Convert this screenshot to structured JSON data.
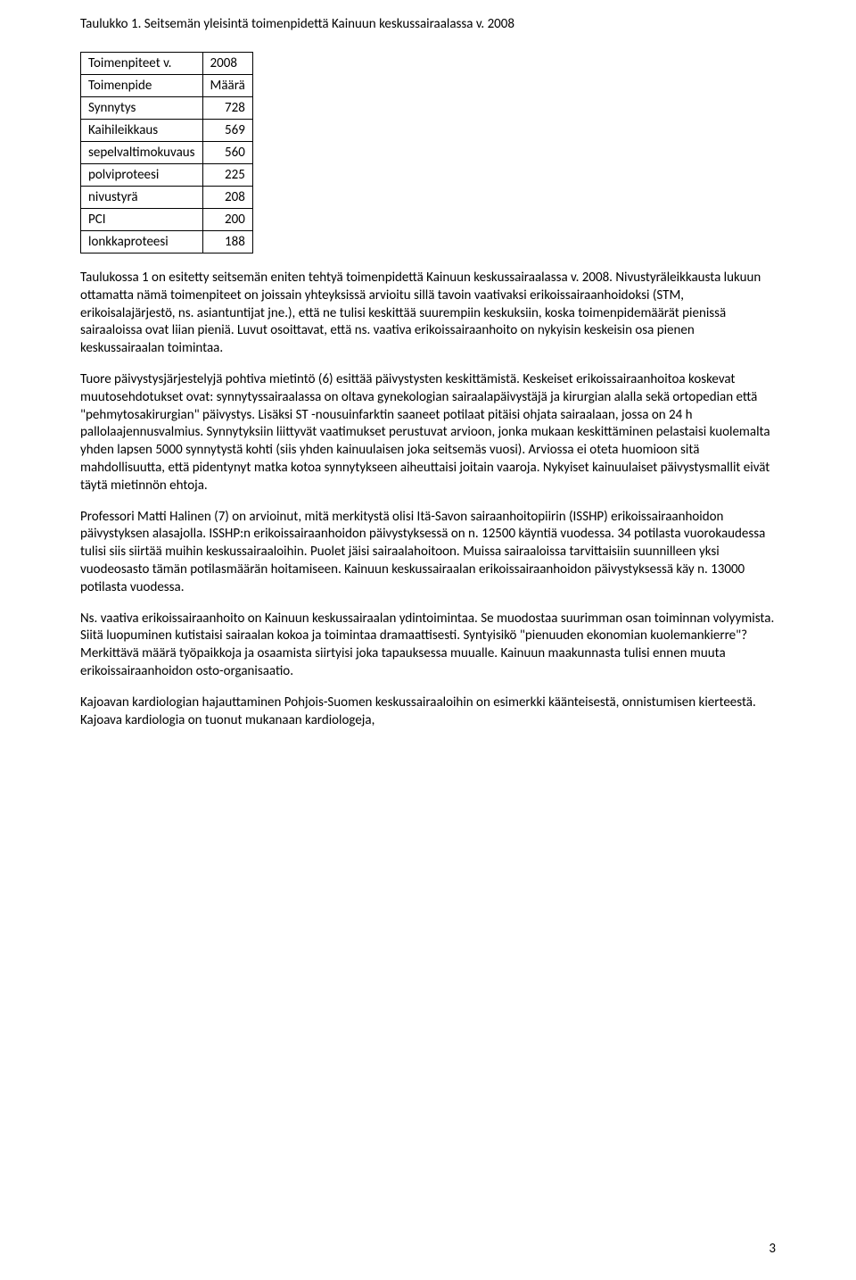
{
  "caption": "Taulukko 1. Seitsemän yleisintä toimenpidettä Kainuun keskussairaalassa v. 2008",
  "table": {
    "header1": "Toimenpiteet v.",
    "header2": "2008",
    "col1": "Toimenpide",
    "col2": "Määrä",
    "rows": [
      {
        "label": "Synnytys",
        "value": "728"
      },
      {
        "label": "Kaihileikkaus",
        "value": "569"
      },
      {
        "label": "sepelvaltimokuvaus",
        "value": "560"
      },
      {
        "label": "polviproteesi",
        "value": "225"
      },
      {
        "label": "nivustyrä",
        "value": "208"
      },
      {
        "label": "PCI",
        "value": "200"
      },
      {
        "label": "lonkkaproteesi",
        "value": "188"
      }
    ]
  },
  "paragraphs": {
    "p1": "Taulukossa 1 on esitetty seitsemän eniten tehtyä toimenpidettä Kainuun keskussairaalassa v. 2008. Nivustyräleikkausta lukuun ottamatta nämä toimenpiteet on joissain yhteyksissä arvioitu sillä tavoin vaativaksi erikoissairaanhoidoksi (STM, erikoisalajärjestö, ns. asiantuntijat jne.), että ne tulisi keskittää suurempiin keskuksiin, koska toimenpidemäärät pienissä sairaaloissa ovat liian pieniä. Luvut osoittavat, että ns. vaativa erikoissairaanhoito on nykyisin keskeisin osa pienen keskussairaalan toimintaa.",
    "p2": "Tuore päivystysjärjestelyjä pohtiva mietintö (6) esittää päivystysten keskittämistä. Keskeiset erikoissairaanhoitoa koskevat muutosehdotukset ovat: synnytyssairaalassa on oltava gynekologian sairaalapäivystäjä ja kirurgian alalla sekä ortopedian että \"pehmytosakirurgian\" päivystys. Lisäksi ST -nousuinfarktin saaneet potilaat pitäisi ohjata sairaalaan, jossa on 24 h pallolaajennusvalmius. Synnytyksiin liittyvät vaatimukset perustuvat arvioon, jonka mukaan keskittäminen pelastaisi kuolemalta yhden lapsen 5000 synnytystä kohti (siis yhden kainuulaisen joka seitsemäs vuosi). Arviossa ei oteta huomioon sitä mahdollisuutta, että pidentynyt matka kotoa synnytykseen aiheuttaisi joitain vaaroja. Nykyiset kainuulaiset päivystysmallit eivät täytä mietinnön ehtoja.",
    "p3": "Professori Matti Halinen (7) on arvioinut, mitä merkitystä olisi Itä-Savon sairaanhoitopiirin (ISSHP) erikoissairaanhoidon päivystyksen alasajolla. ISSHP:n erikoissairaanhoidon päivystyksessä on n. 12500 käyntiä vuodessa. 34 potilasta vuorokaudessa tulisi siis siirtää muihin keskussairaaloihin. Puolet jäisi sairaalahoitoon. Muissa sairaaloissa tarvittaisiin suunnilleen yksi vuodeosasto tämän potilasmäärän hoitamiseen. Kainuun keskussairaalan erikoissairaanhoidon päivystyksessä käy n. 13000 potilasta vuodessa.",
    "p4": "Ns. vaativa erikoissairaanhoito on Kainuun keskussairaalan ydintoimintaa. Se muodostaa suurimman osan toiminnan volyymista. Siitä luopuminen kutistaisi sairaalan kokoa ja toimintaa dramaattisesti. Syntyisikö \"pienuuden ekonomian kuolemankierre\"? Merkittävä määrä työpaikkoja ja osaamista siirtyisi joka tapauksessa muualle. Kainuun maakunnasta tulisi ennen muuta erikoissairaanhoidon osto-organisaatio.",
    "p5": "Kajoavan kardiologian hajauttaminen Pohjois-Suomen keskussairaaloihin on esimerkki käänteisestä, onnistumisen kierteestä. Kajoava kardiologia on tuonut mukanaan kardiologeja,"
  },
  "page_number": "3"
}
